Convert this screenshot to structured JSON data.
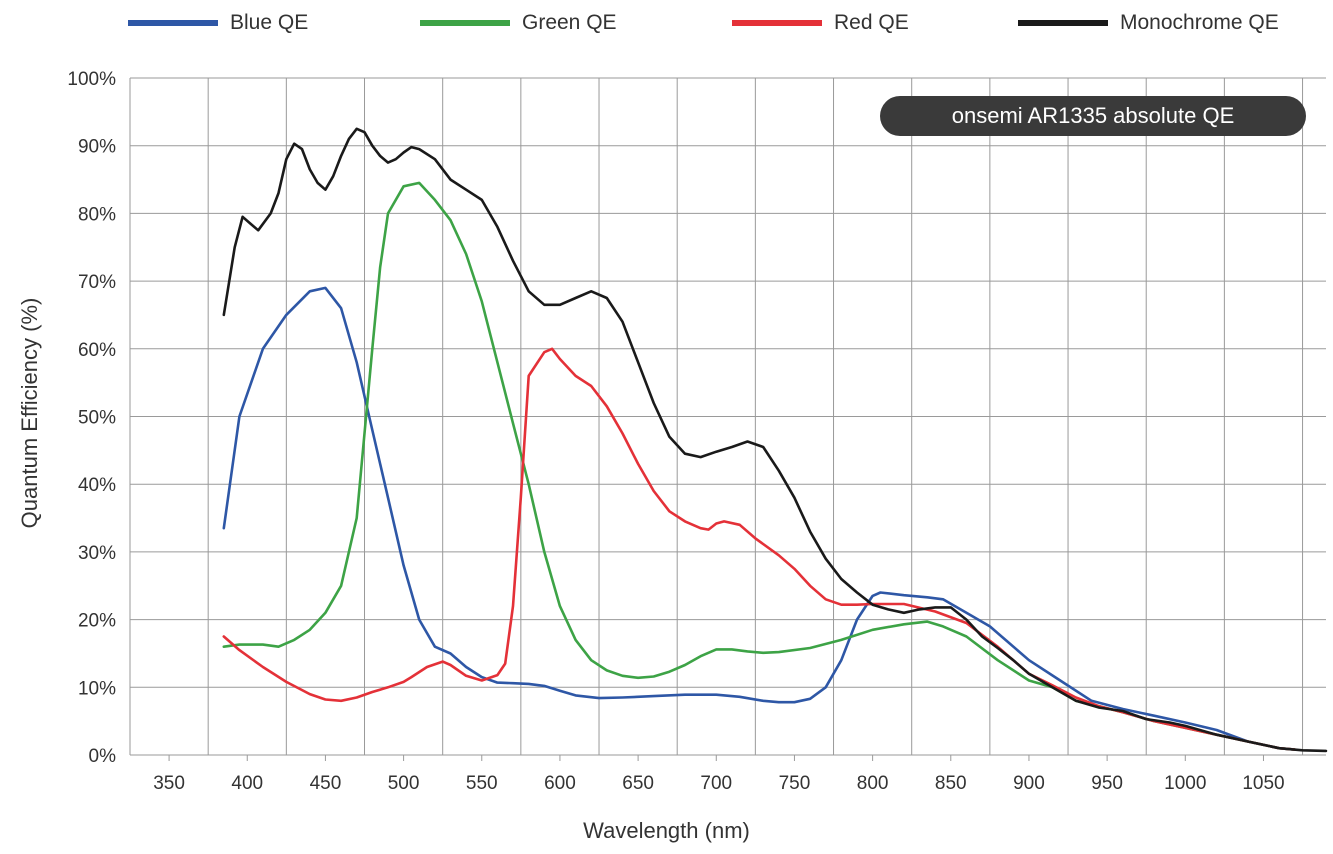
{
  "chart_data": {
    "type": "line",
    "title": "onsemi AR1335 absolute QE",
    "xlabel": "Wavelength (nm)",
    "ylabel": "Quantum Efficiency (%)",
    "xlim": [
      325,
      1090
    ],
    "ylim": [
      0,
      100
    ],
    "x_ticks": [
      350,
      400,
      450,
      500,
      550,
      600,
      650,
      700,
      750,
      800,
      850,
      900,
      950,
      1000,
      1050
    ],
    "y_ticks": [
      0,
      10,
      20,
      30,
      40,
      50,
      60,
      70,
      80,
      90,
      100
    ],
    "y_tick_suffix": "%",
    "grid": true,
    "legend_position": "top",
    "series": [
      {
        "name": "Blue QE",
        "color": "#2e57a6",
        "points": [
          [
            385,
            33.5
          ],
          [
            395,
            50
          ],
          [
            410,
            60
          ],
          [
            425,
            65
          ],
          [
            440,
            68.5
          ],
          [
            450,
            69
          ],
          [
            460,
            66
          ],
          [
            470,
            58
          ],
          [
            480,
            48
          ],
          [
            490,
            38
          ],
          [
            500,
            28
          ],
          [
            510,
            20
          ],
          [
            520,
            16
          ],
          [
            530,
            15
          ],
          [
            540,
            13
          ],
          [
            550,
            11.5
          ],
          [
            560,
            10.7
          ],
          [
            570,
            10.6
          ],
          [
            580,
            10.5
          ],
          [
            590,
            10.2
          ],
          [
            600,
            9.5
          ],
          [
            610,
            8.8
          ],
          [
            625,
            8.4
          ],
          [
            640,
            8.5
          ],
          [
            660,
            8.7
          ],
          [
            680,
            8.9
          ],
          [
            700,
            8.9
          ],
          [
            715,
            8.6
          ],
          [
            730,
            8.0
          ],
          [
            740,
            7.8
          ],
          [
            750,
            7.8
          ],
          [
            760,
            8.3
          ],
          [
            770,
            10
          ],
          [
            780,
            14
          ],
          [
            790,
            20
          ],
          [
            800,
            23.5
          ],
          [
            805,
            24
          ],
          [
            820,
            23.6
          ],
          [
            835,
            23.3
          ],
          [
            845,
            23
          ],
          [
            860,
            21
          ],
          [
            875,
            19
          ],
          [
            885,
            17
          ],
          [
            900,
            14
          ],
          [
            920,
            11
          ],
          [
            940,
            8
          ],
          [
            960,
            6.8
          ],
          [
            980,
            5.8
          ],
          [
            1000,
            4.8
          ],
          [
            1020,
            3.7
          ],
          [
            1040,
            2
          ],
          [
            1060,
            1
          ],
          [
            1070,
            0.8
          ]
        ]
      },
      {
        "name": "Green QE",
        "color": "#3da346",
        "points": [
          [
            385,
            16
          ],
          [
            395,
            16.3
          ],
          [
            410,
            16.3
          ],
          [
            420,
            16
          ],
          [
            430,
            17
          ],
          [
            440,
            18.5
          ],
          [
            450,
            21
          ],
          [
            460,
            25
          ],
          [
            470,
            35
          ],
          [
            480,
            60
          ],
          [
            485,
            72
          ],
          [
            490,
            80
          ],
          [
            500,
            84
          ],
          [
            510,
            84.5
          ],
          [
            520,
            82
          ],
          [
            530,
            79
          ],
          [
            540,
            74
          ],
          [
            550,
            67
          ],
          [
            560,
            58
          ],
          [
            570,
            49
          ],
          [
            580,
            40
          ],
          [
            590,
            30
          ],
          [
            600,
            22
          ],
          [
            610,
            17
          ],
          [
            620,
            14
          ],
          [
            630,
            12.5
          ],
          [
            640,
            11.7
          ],
          [
            650,
            11.4
          ],
          [
            660,
            11.6
          ],
          [
            670,
            12.3
          ],
          [
            680,
            13.3
          ],
          [
            690,
            14.6
          ],
          [
            700,
            15.6
          ],
          [
            710,
            15.6
          ],
          [
            720,
            15.3
          ],
          [
            730,
            15.1
          ],
          [
            740,
            15.2
          ],
          [
            760,
            15.8
          ],
          [
            780,
            17
          ],
          [
            800,
            18.5
          ],
          [
            820,
            19.3
          ],
          [
            835,
            19.7
          ],
          [
            845,
            19
          ],
          [
            860,
            17.5
          ],
          [
            880,
            14
          ],
          [
            900,
            11
          ],
          [
            915,
            10
          ],
          [
            930,
            8
          ],
          [
            945,
            7.2
          ],
          [
            960,
            6.3
          ],
          [
            980,
            5
          ],
          [
            1000,
            4
          ],
          [
            1020,
            3
          ],
          [
            1040,
            2
          ],
          [
            1060,
            1
          ],
          [
            1070,
            0.8
          ]
        ]
      },
      {
        "name": "Red QE",
        "color": "#e43138",
        "points": [
          [
            385,
            17.5
          ],
          [
            395,
            15.5
          ],
          [
            410,
            13
          ],
          [
            425,
            10.8
          ],
          [
            440,
            9.0
          ],
          [
            450,
            8.2
          ],
          [
            460,
            8.0
          ],
          [
            470,
            8.5
          ],
          [
            480,
            9.3
          ],
          [
            490,
            10
          ],
          [
            500,
            10.8
          ],
          [
            505,
            11.5
          ],
          [
            515,
            13
          ],
          [
            525,
            13.8
          ],
          [
            530,
            13.3
          ],
          [
            540,
            11.7
          ],
          [
            550,
            11.0
          ],
          [
            560,
            11.8
          ],
          [
            565,
            13.5
          ],
          [
            570,
            22
          ],
          [
            575,
            38
          ],
          [
            580,
            56
          ],
          [
            590,
            59.5
          ],
          [
            595,
            60
          ],
          [
            600,
            58.5
          ],
          [
            610,
            56
          ],
          [
            620,
            54.5
          ],
          [
            630,
            51.5
          ],
          [
            640,
            47.5
          ],
          [
            650,
            43
          ],
          [
            660,
            39
          ],
          [
            670,
            36
          ],
          [
            680,
            34.5
          ],
          [
            690,
            33.5
          ],
          [
            695,
            33.3
          ],
          [
            700,
            34.2
          ],
          [
            705,
            34.5
          ],
          [
            715,
            34
          ],
          [
            725,
            32
          ],
          [
            740,
            29.5
          ],
          [
            750,
            27.5
          ],
          [
            760,
            25
          ],
          [
            770,
            23
          ],
          [
            780,
            22.2
          ],
          [
            790,
            22.2
          ],
          [
            800,
            22.3
          ],
          [
            820,
            22.3
          ],
          [
            840,
            21.2
          ],
          [
            860,
            19.5
          ],
          [
            880,
            16
          ],
          [
            900,
            12
          ],
          [
            915,
            10.3
          ],
          [
            930,
            8.5
          ],
          [
            945,
            7.2
          ],
          [
            960,
            6.3
          ],
          [
            980,
            5
          ],
          [
            1000,
            4
          ],
          [
            1020,
            3
          ],
          [
            1040,
            2
          ],
          [
            1060,
            1
          ],
          [
            1070,
            0.8
          ]
        ]
      },
      {
        "name": "Monochrome QE",
        "color": "#1a1a1a",
        "points": [
          [
            385,
            65
          ],
          [
            392,
            75
          ],
          [
            397,
            79.5
          ],
          [
            402,
            78.5
          ],
          [
            407,
            77.5
          ],
          [
            415,
            80
          ],
          [
            420,
            83
          ],
          [
            425,
            88
          ],
          [
            430,
            90.3
          ],
          [
            435,
            89.5
          ],
          [
            440,
            86.5
          ],
          [
            445,
            84.5
          ],
          [
            450,
            83.5
          ],
          [
            455,
            85.5
          ],
          [
            460,
            88.5
          ],
          [
            465,
            91
          ],
          [
            470,
            92.5
          ],
          [
            475,
            92
          ],
          [
            480,
            90
          ],
          [
            485,
            88.5
          ],
          [
            490,
            87.5
          ],
          [
            495,
            88
          ],
          [
            500,
            89
          ],
          [
            505,
            89.8
          ],
          [
            510,
            89.5
          ],
          [
            520,
            88
          ],
          [
            530,
            85
          ],
          [
            540,
            83.5
          ],
          [
            550,
            82
          ],
          [
            560,
            78
          ],
          [
            570,
            73
          ],
          [
            580,
            68.5
          ],
          [
            590,
            66.5
          ],
          [
            600,
            66.5
          ],
          [
            610,
            67.5
          ],
          [
            620,
            68.5
          ],
          [
            630,
            67.5
          ],
          [
            640,
            64
          ],
          [
            650,
            58
          ],
          [
            660,
            52
          ],
          [
            670,
            47
          ],
          [
            680,
            44.5
          ],
          [
            690,
            44
          ],
          [
            700,
            44.8
          ],
          [
            710,
            45.5
          ],
          [
            720,
            46.3
          ],
          [
            730,
            45.5
          ],
          [
            740,
            42
          ],
          [
            750,
            38
          ],
          [
            760,
            33
          ],
          [
            770,
            29
          ],
          [
            780,
            26
          ],
          [
            790,
            24
          ],
          [
            800,
            22.2
          ],
          [
            810,
            21.5
          ],
          [
            820,
            21
          ],
          [
            830,
            21.5
          ],
          [
            840,
            21.8
          ],
          [
            850,
            21.8
          ],
          [
            860,
            20
          ],
          [
            870,
            17.5
          ],
          [
            880,
            15.8
          ],
          [
            890,
            14
          ],
          [
            900,
            12
          ],
          [
            915,
            10
          ],
          [
            930,
            8
          ],
          [
            945,
            7
          ],
          [
            960,
            6.5
          ],
          [
            975,
            5.3
          ],
          [
            990,
            4.8
          ],
          [
            1000,
            4.3
          ],
          [
            1020,
            3
          ],
          [
            1040,
            2
          ],
          [
            1060,
            1
          ],
          [
            1075,
            0.7
          ],
          [
            1090,
            0.6
          ]
        ]
      }
    ]
  }
}
